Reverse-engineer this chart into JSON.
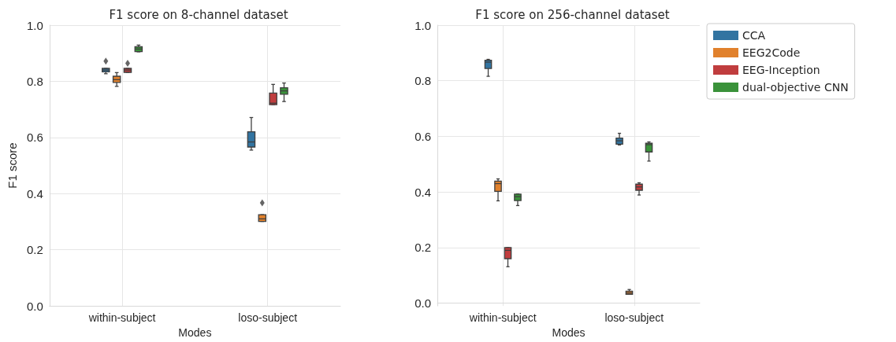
{
  "chart_data": [
    {
      "type": "box",
      "title": "F1 score on 8-channel dataset",
      "xlabel": "Modes",
      "ylabel": "F1 score",
      "categories": [
        "within-subject",
        "loso-subject"
      ],
      "ylim": [
        0,
        1
      ],
      "yticks": [
        {
          "value": 0,
          "label": "0.0"
        },
        {
          "value": 0.2,
          "label": "0.2"
        },
        {
          "value": 0.4,
          "label": "0.4"
        },
        {
          "value": 0.6,
          "label": "0.6"
        },
        {
          "value": 0.8,
          "label": "0.8"
        },
        {
          "value": 1,
          "label": "1.0"
        }
      ],
      "grid": true,
      "legend": false,
      "marker": "diamond",
      "series": [
        {
          "color": "#3274a1",
          "boxes": [
            {
              "low": 0.827,
              "q1": 0.834,
              "median": 0.84,
              "q3": 0.846,
              "high": 0.846,
              "outliers": [
                0.872
              ]
            },
            {
              "low": 0.555,
              "q1": 0.566,
              "median": 0.584,
              "q3": 0.62,
              "high": 0.671
            }
          ]
        },
        {
          "color": "#e1812c",
          "boxes": [
            {
              "low": 0.782,
              "q1": 0.796,
              "median": 0.806,
              "q3": 0.818,
              "high": 0.831
            },
            {
              "low": 0.301,
              "q1": 0.301,
              "median": 0.31,
              "q3": 0.325,
              "high": 0.325,
              "outliers": [
                0.367
              ]
            }
          ]
        },
        {
          "color": "#c03d3e",
          "boxes": [
            {
              "low": 0.832,
              "q1": 0.832,
              "median": 0.84,
              "q3": 0.846,
              "high": 0.846,
              "outliers": [
                0.864
              ]
            },
            {
              "low": 0.717,
              "q1": 0.717,
              "median": 0.722,
              "q3": 0.758,
              "high": 0.789
            }
          ]
        },
        {
          "color": "#3a923a",
          "boxes": [
            {
              "low": 0.905,
              "q1": 0.906,
              "median": 0.915,
              "q3": 0.923,
              "high": 0.929
            },
            {
              "low": 0.728,
              "q1": 0.754,
              "median": 0.766,
              "q3": 0.777,
              "high": 0.794
            }
          ]
        }
      ]
    },
    {
      "type": "box",
      "title": "F1 score on 256-channel dataset",
      "xlabel": "Modes",
      "categories": [
        "within-subject",
        "loso-subject"
      ],
      "ylim": [
        -0.01,
        1
      ],
      "yticks": [
        {
          "value": 0,
          "label": "0.0"
        },
        {
          "value": 0.2,
          "label": "0.2"
        },
        {
          "value": 0.4,
          "label": "0.4"
        },
        {
          "value": 0.6,
          "label": "0.6"
        },
        {
          "value": 0.8,
          "label": "0.8"
        },
        {
          "value": 1,
          "label": "1.0"
        }
      ],
      "grid": true,
      "legend": "right",
      "series": [
        {
          "name": "CCA",
          "color": "#3274a1",
          "boxes": [
            {
              "low": 0.816,
              "q1": 0.844,
              "median": 0.867,
              "q3": 0.874,
              "high": 0.877
            },
            {
              "low": 0.569,
              "q1": 0.572,
              "median": 0.584,
              "q3": 0.594,
              "high": 0.611
            }
          ]
        },
        {
          "name": "EEG2Code",
          "color": "#e1812c",
          "boxes": [
            {
              "low": 0.368,
              "q1": 0.402,
              "median": 0.43,
              "q3": 0.439,
              "high": 0.447
            },
            {
              "low": 0.032,
              "q1": 0.032,
              "median": 0.037,
              "q3": 0.043,
              "high": 0.049
            }
          ]
        },
        {
          "name": "EEG-Inception",
          "color": "#c03d3e",
          "boxes": [
            {
              "low": 0.131,
              "q1": 0.16,
              "median": 0.19,
              "q3": 0.2,
              "high": 0.2
            },
            {
              "low": 0.389,
              "q1": 0.406,
              "median": 0.418,
              "q3": 0.428,
              "high": 0.433
            }
          ]
        },
        {
          "name": "dual-objective CNN",
          "color": "#3a923a",
          "boxes": [
            {
              "low": 0.351,
              "q1": 0.369,
              "median": 0.383,
              "q3": 0.392,
              "high": 0.393
            },
            {
              "low": 0.511,
              "q1": 0.544,
              "median": 0.57,
              "q3": 0.575,
              "high": 0.58
            }
          ]
        }
      ]
    }
  ]
}
